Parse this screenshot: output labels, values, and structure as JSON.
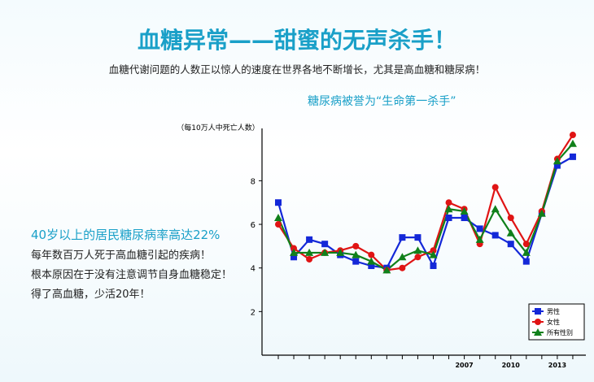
{
  "header": {
    "title": "血糖异常——甜蜜的无声杀手！",
    "subtitle": "血糖代谢问题的人数正以惊人的速度在世界各地不断增长，尤其是高血糖和糖尿病！"
  },
  "side": {
    "headline": "40岁以上的居民糖尿病率高达22%",
    "lines": [
      "每年数百万人死于高血糖引起的疾病！",
      "根本原因在于没有注意调节自身血糖稳定！",
      "得了高血糖，少活20年！"
    ]
  },
  "chart_data": {
    "type": "line",
    "title": "糖尿病被誉为“生命第一杀手”",
    "y_label": "（每10万人中死亡人数）",
    "categories": [
      null,
      null,
      null,
      null,
      null,
      null,
      null,
      null,
      null,
      null,
      null,
      null,
      "2007",
      null,
      null,
      "2010",
      null,
      null,
      "2013",
      null
    ],
    "series": [
      {
        "name": "男性",
        "color": "#1428d8",
        "marker": "square",
        "values": [
          7.0,
          4.5,
          5.3,
          5.1,
          4.6,
          4.3,
          4.1,
          4.0,
          5.4,
          5.4,
          4.1,
          6.3,
          6.3,
          5.8,
          5.5,
          5.1,
          4.3,
          6.5,
          8.7,
          9.1
        ]
      },
      {
        "name": "女性",
        "color": "#e01414",
        "marker": "circle",
        "values": [
          6.0,
          4.9,
          4.4,
          4.7,
          4.8,
          5.0,
          4.6,
          3.9,
          4.0,
          4.5,
          4.8,
          7.0,
          6.7,
          5.1,
          7.7,
          6.3,
          5.1,
          6.6,
          9.0,
          10.1
        ]
      },
      {
        "name": "所有性别",
        "color": "#10801a",
        "marker": "triangle",
        "values": [
          6.3,
          4.7,
          4.7,
          4.7,
          4.7,
          4.6,
          4.3,
          3.9,
          4.5,
          4.8,
          4.6,
          6.7,
          6.6,
          5.3,
          6.7,
          5.6,
          4.7,
          6.5,
          8.9,
          9.7
        ]
      }
    ],
    "ylim": [
      0,
      10.4
    ],
    "yticks": [
      2,
      4,
      6,
      8
    ],
    "legend": "lower right"
  }
}
